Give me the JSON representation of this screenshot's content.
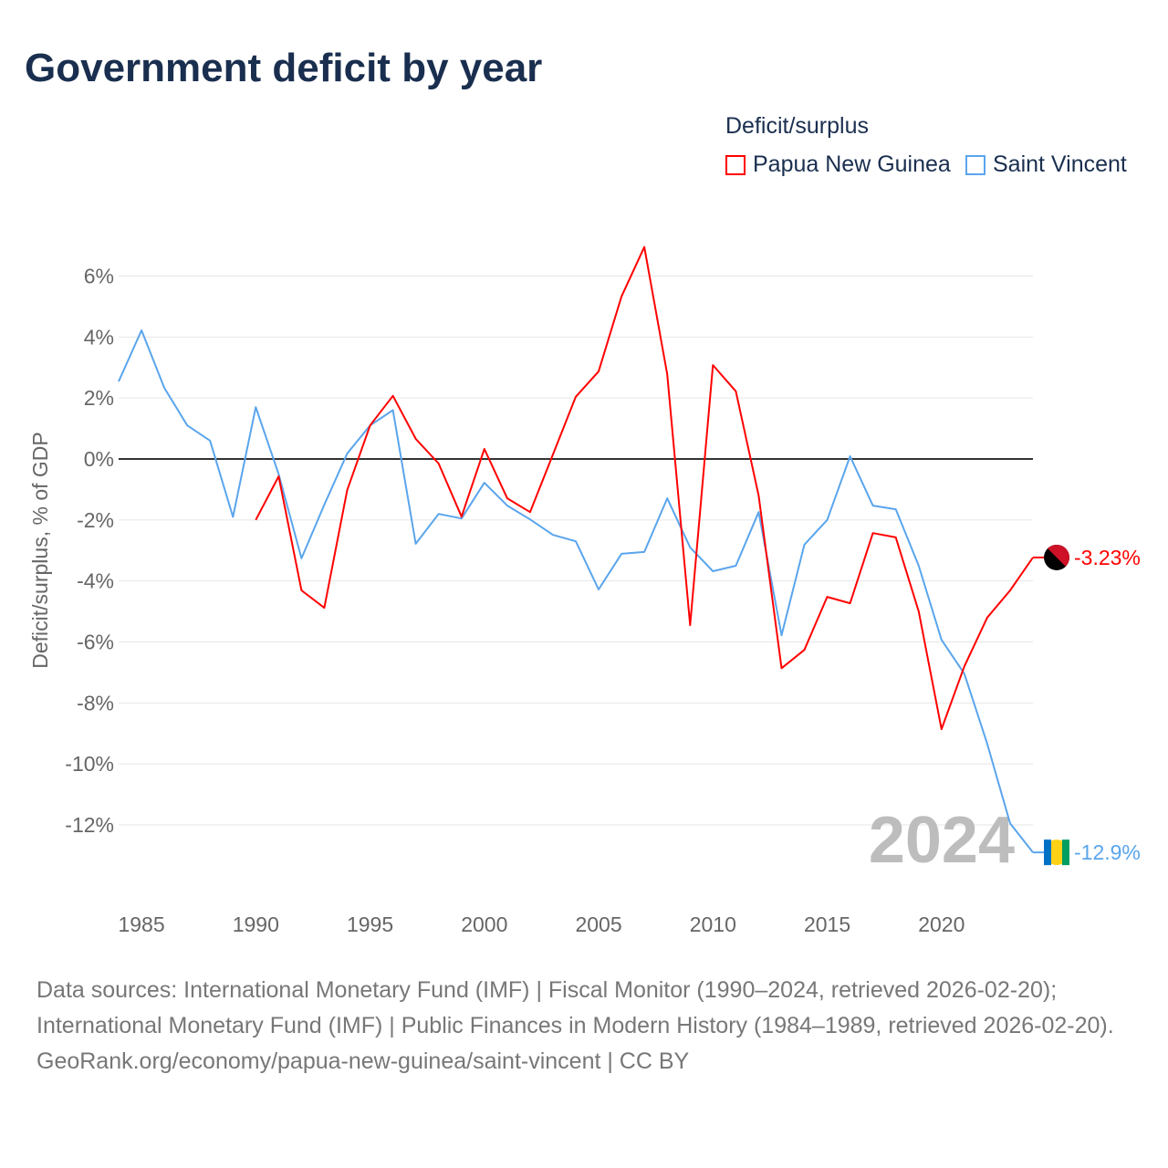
{
  "title": "Government deficit by year",
  "legend": {
    "title": "Deficit/surplus",
    "items": [
      {
        "label": "Papua New Guinea",
        "color": "#ff0000"
      },
      {
        "label": "Saint Vincent",
        "color": "#5aa5ec"
      }
    ]
  },
  "year_watermark": "2024",
  "footer": {
    "sources": "Data sources: International Monetary Fund (IMF) | Fiscal Monitor (1990–2024, retrieved 2026-02-20); International Monetary Fund (IMF) | Public Finances in Modern History (1984–1989, retrieved 2026-02-20).",
    "credit": "GeoRank.org/economy/papua-new-guinea/saint-vincent | CC BY"
  },
  "chart_data": {
    "type": "line",
    "title": "Government deficit by year",
    "xlabel": "",
    "ylabel": "Deficit/surplus, % of GDP",
    "xlim": [
      1984,
      2024
    ],
    "ylim": [
      -13.5,
      7
    ],
    "x_ticks": [
      1985,
      1990,
      1995,
      2000,
      2005,
      2010,
      2015,
      2020
    ],
    "y_ticks": [
      6,
      4,
      2,
      0,
      -2,
      -4,
      -6,
      -8,
      -10,
      -12
    ],
    "y_tick_labels": [
      "6%",
      "4%",
      "2%",
      "0%",
      "-2%",
      "-4%",
      "-6%",
      "-8%",
      "-10%",
      "-12%"
    ],
    "grid": true,
    "legend_position": "top-right",
    "series": [
      {
        "name": "Papua New Guinea",
        "color": "#ff0000",
        "end_label": "-3.23%",
        "start_year": 1990,
        "values": [
          -2.0,
          -0.57,
          -4.31,
          -4.88,
          -1.02,
          1.1,
          2.07,
          0.66,
          -0.15,
          -1.89,
          0.33,
          -1.29,
          -1.74,
          0.15,
          2.04,
          2.87,
          5.33,
          6.95,
          2.78,
          -5.45,
          3.08,
          2.22,
          -1.2,
          -6.86,
          -6.26,
          -4.52,
          -4.73,
          -2.43,
          -2.57,
          -5.0,
          -8.86,
          -6.8,
          -5.2,
          -4.31,
          -3.23
        ]
      },
      {
        "name": "Saint Vincent",
        "color": "#5aa5ec",
        "end_label": "-12.9%",
        "start_year": 1984,
        "values": [
          2.54,
          4.22,
          2.33,
          1.1,
          0.6,
          -1.9,
          1.7,
          -0.5,
          -3.26,
          -1.5,
          0.18,
          1.1,
          1.6,
          -2.78,
          -1.8,
          -1.95,
          -0.78,
          -1.53,
          -1.98,
          -2.49,
          -2.7,
          -4.28,
          -3.11,
          -3.05,
          -1.29,
          -2.9,
          -3.68,
          -3.5,
          -1.74,
          -5.78,
          -2.81,
          -2.0,
          0.09,
          -1.53,
          -1.65,
          -3.5,
          -5.93,
          -7.04,
          -9.34,
          -11.95,
          -12.9
        ]
      }
    ]
  }
}
